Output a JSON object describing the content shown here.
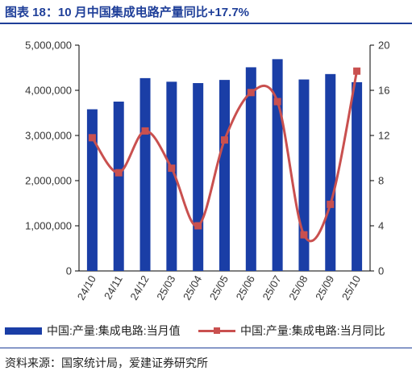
{
  "title": "图表 18：10 月中国集成电路产量同比+17.7%",
  "source": "资料来源：国家统计局，爱建证券研究所",
  "legend": {
    "bar_label": "中国:产量:集成电路:当月值",
    "line_label": "中国:产量:集成电路:当月同比"
  },
  "colors": {
    "bar": "#1a3ea6",
    "line": "#c9504f",
    "title": "#1f3f99"
  },
  "chart_data": {
    "type": "bar",
    "categories": [
      "24/10",
      "24/11",
      "24/12",
      "25/03",
      "25/04",
      "25/05",
      "25/06",
      "25/07",
      "25/08",
      "25/09",
      "25/10"
    ],
    "series": [
      {
        "name": "中国:产量:集成电路:当月值",
        "type": "bar",
        "axis": "left",
        "values": [
          3580000,
          3750000,
          4270000,
          4190000,
          4160000,
          4230000,
          4510000,
          4690000,
          4240000,
          4360000,
          4180000
        ]
      },
      {
        "name": "中国:产量:集成电路:当月同比",
        "type": "line",
        "axis": "right",
        "values": [
          11.8,
          8.7,
          12.4,
          9.1,
          4.0,
          11.6,
          15.8,
          15.0,
          3.2,
          5.9,
          17.7
        ]
      }
    ],
    "y_left": {
      "ylim": [
        0,
        5000000
      ],
      "ticks": [
        "0",
        "1,000,000",
        "2,000,000",
        "3,000,000",
        "4,000,000",
        "5,000,000"
      ]
    },
    "y_right": {
      "ylim": [
        0,
        20
      ],
      "ticks": [
        "0",
        "4",
        "8",
        "12",
        "16",
        "20"
      ]
    },
    "grid": false,
    "legend_position": "bottom"
  }
}
